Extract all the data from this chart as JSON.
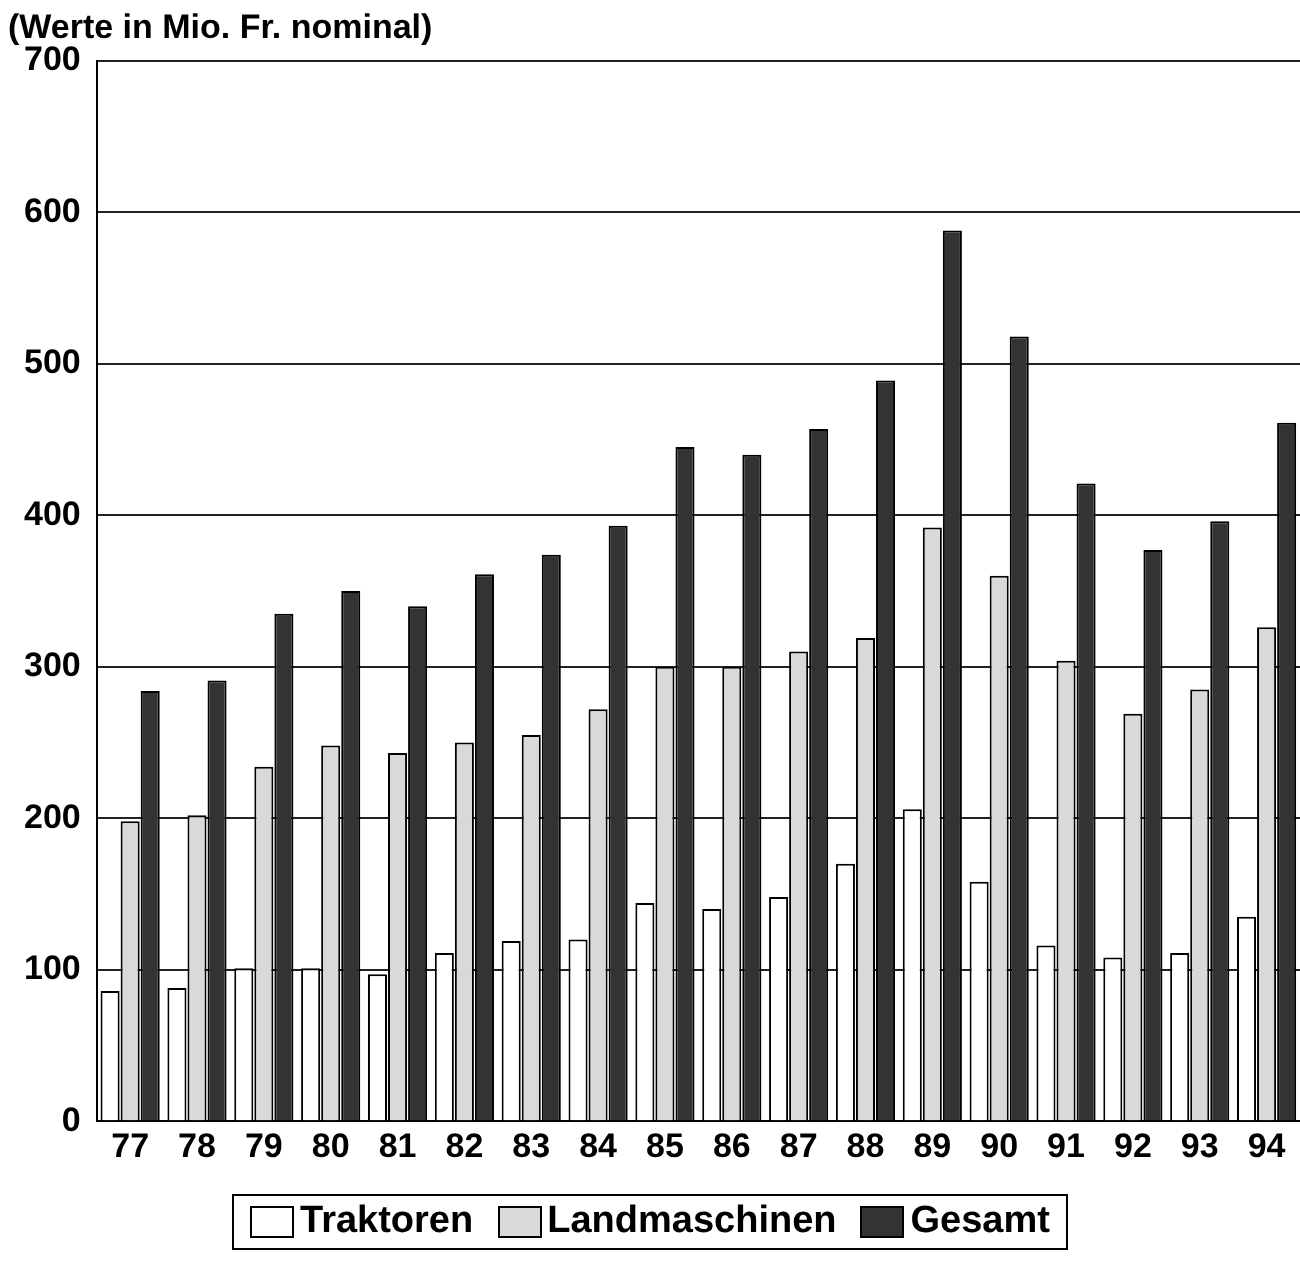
{
  "chart_data": {
    "type": "bar",
    "title": "(Werte in Mio. Fr. nominal)",
    "categories": [
      "77",
      "78",
      "79",
      "80",
      "81",
      "82",
      "83",
      "84",
      "85",
      "86",
      "87",
      "88",
      "89",
      "90",
      "91",
      "92",
      "93",
      "94"
    ],
    "series": [
      {
        "name": "Traktoren",
        "color": "#ffffff",
        "values": [
          86,
          88,
          101,
          101,
          97,
          111,
          119,
          120,
          144,
          140,
          148,
          170,
          206,
          158,
          116,
          108,
          111,
          135
        ]
      },
      {
        "name": "Landmaschinen",
        "color": "#d9d9d9",
        "values": [
          198,
          202,
          234,
          248,
          243,
          250,
          255,
          272,
          300,
          300,
          310,
          319,
          392,
          360,
          304,
          269,
          285,
          326
        ]
      },
      {
        "name": "Gesamt",
        "color": "#333333",
        "values": [
          284,
          291,
          335,
          350,
          340,
          361,
          374,
          393,
          445,
          440,
          457,
          489,
          588,
          518,
          421,
          377,
          396,
          461
        ]
      }
    ],
    "ylim": [
      0,
      700
    ],
    "yticks": [
      0,
      100,
      200,
      300,
      400,
      500,
      600,
      700
    ],
    "grid": "y",
    "legend": "bottom"
  }
}
